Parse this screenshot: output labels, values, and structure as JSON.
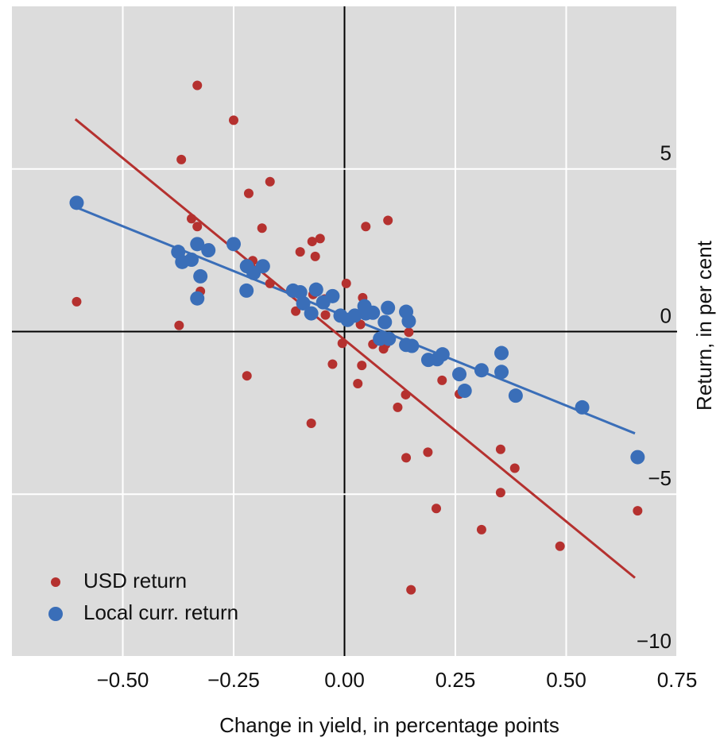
{
  "chart_data": {
    "type": "scatter",
    "x_label": "Change in yield, in percentage points",
    "y_label": "Return, in per cent",
    "xlim": [
      -0.75,
      0.75
    ],
    "ylim": [
      -10,
      10
    ],
    "xticks": [
      {
        "value": -0.5,
        "label": "−0.50"
      },
      {
        "value": -0.25,
        "label": "−0.25"
      },
      {
        "value": 0,
        "label": "0.00"
      },
      {
        "value": 0.25,
        "label": "0.25"
      },
      {
        "value": 0.5,
        "label": "0.50"
      },
      {
        "value": 0.75,
        "label": "0.75"
      }
    ],
    "yticks": [
      {
        "value": -10,
        "label": "−10"
      },
      {
        "value": -5,
        "label": "−5"
      },
      0,
      5
    ],
    "grid": true,
    "background": "#dcdcdc",
    "legend": "lower left",
    "series": [
      {
        "name": "USD return",
        "color": "#b5312f",
        "x": [
          -0.604,
          -0.332,
          -0.25,
          -0.368,
          -0.373,
          -0.345,
          -0.332,
          -0.305,
          -0.325,
          -0.216,
          -0.168,
          -0.186,
          -0.207,
          -0.168,
          -0.22,
          -0.1,
          -0.073,
          -0.055,
          -0.066,
          -0.071,
          -0.045,
          -0.11,
          -0.093,
          -0.075,
          -0.027,
          0.004,
          -0.005,
          0.048,
          0.098,
          0.041,
          0.039,
          0.03,
          0.036,
          0.064,
          0.088,
          0.093,
          0.12,
          0.138,
          0.145,
          0.139,
          0.15,
          0.188,
          0.207,
          0.22,
          0.259,
          0.309,
          0.352,
          0.352,
          0.384,
          0.486,
          0.661,
          -0.043
        ],
        "values": [
          0.92,
          7.57,
          6.5,
          5.29,
          0.19,
          3.47,
          3.23,
          2.57,
          1.24,
          4.25,
          4.61,
          3.18,
          2.18,
          1.48,
          -1.36,
          2.45,
          2.77,
          2.86,
          2.31,
          1.14,
          1.0,
          0.63,
          0.95,
          -2.82,
          -1.0,
          1.48,
          -0.36,
          3.23,
          3.42,
          1.04,
          -1.04,
          -1.6,
          0.22,
          -0.39,
          -0.53,
          -0.39,
          -2.33,
          -1.94,
          -0.02,
          -3.88,
          -7.94,
          -3.71,
          -5.44,
          -1.5,
          -1.92,
          -6.09,
          -3.62,
          -4.95,
          -4.2,
          -6.6,
          -5.51,
          0.51
        ]
      },
      {
        "name": "Local curr. return",
        "color": "#3a6eb8",
        "x": [
          -0.604,
          -0.375,
          -0.366,
          -0.345,
          -0.332,
          -0.307,
          -0.325,
          -0.332,
          -0.25,
          -0.22,
          -0.205,
          -0.184,
          -0.221,
          -0.116,
          -0.1,
          -0.064,
          -0.093,
          -0.075,
          -0.048,
          -0.027,
          -0.009,
          0.007,
          0.023,
          0.045,
          0.048,
          0.064,
          0.098,
          0.091,
          0.139,
          0.145,
          0.08,
          0.1,
          0.139,
          0.152,
          0.189,
          0.209,
          0.221,
          0.259,
          0.271,
          0.309,
          0.354,
          0.354,
          0.386,
          0.536,
          0.661
        ],
        "values": [
          3.96,
          2.45,
          2.14,
          2.21,
          2.69,
          2.5,
          1.7,
          1.02,
          2.69,
          2.01,
          1.8,
          2.01,
          1.26,
          1.26,
          1.21,
          1.29,
          0.87,
          0.56,
          0.9,
          1.09,
          0.49,
          0.36,
          0.49,
          0.78,
          0.56,
          0.58,
          0.73,
          0.29,
          0.61,
          0.32,
          -0.22,
          -0.22,
          -0.41,
          -0.44,
          -0.87,
          -0.85,
          -0.7,
          -1.31,
          -1.82,
          -1.19,
          -0.66,
          -1.24,
          -1.97,
          -2.33,
          -3.86
        ]
      }
    ],
    "trend_lines": [
      {
        "color": "#b5312f",
        "x": [
          -0.607,
          0.655
        ],
        "values": [
          6.53,
          -7.57
        ]
      },
      {
        "color": "#3a6eb8",
        "x": [
          -0.607,
          0.655
        ],
        "values": [
          3.83,
          -3.13
        ]
      }
    ]
  }
}
